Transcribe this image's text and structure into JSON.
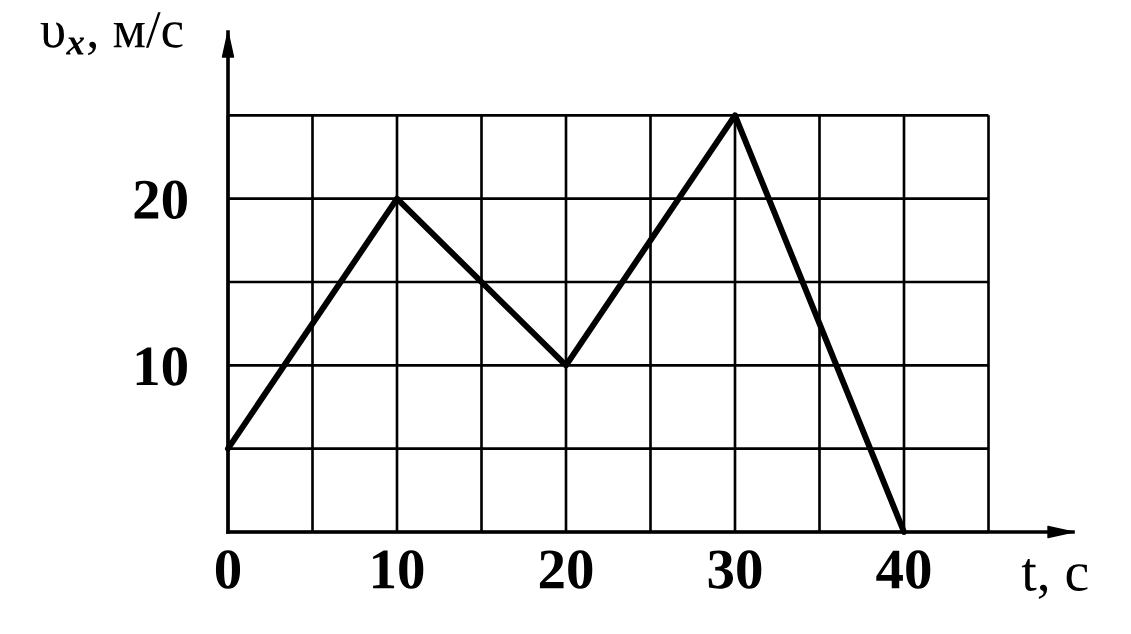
{
  "chart_data": {
    "type": "line",
    "xlabel": "t, с",
    "ylabel": "υ$_{x}$, м/с",
    "x": [
      0,
      10,
      20,
      30,
      40
    ],
    "series": [
      {
        "color": "#000000",
        "values": [
          5,
          20,
          10,
          25,
          0
        ]
      }
    ],
    "xlim": [
      0,
      50
    ],
    "ylim": [
      0,
      30
    ],
    "xticks": [
      0,
      {
        "value": 5,
        "label": null
      },
      10,
      {
        "value": 15,
        "label": null
      },
      20,
      {
        "value": 25,
        "label": null
      },
      30,
      {
        "value": 35,
        "label": null
      },
      40,
      {
        "value": 45,
        "label": null
      }
    ],
    "yticks": [
      {
        "value": 0,
        "label": null
      },
      {
        "value": 5,
        "label": null
      },
      10,
      {
        "value": 15,
        "label": null
      },
      20,
      {
        "value": 25,
        "label": null
      }
    ],
    "grid": true,
    "line_style": "solid"
  }
}
